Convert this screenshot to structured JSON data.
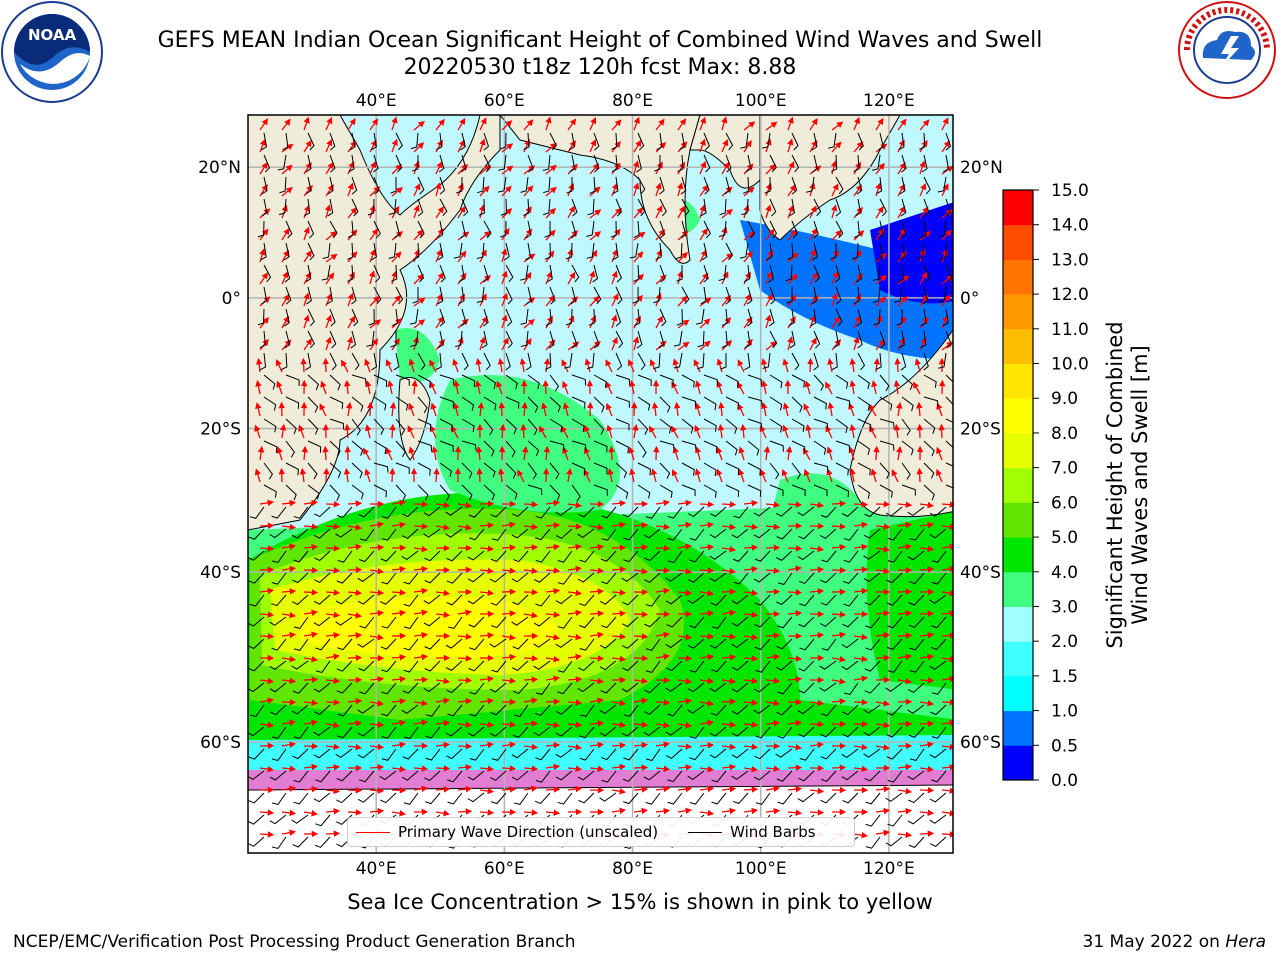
{
  "title": {
    "line1": "GEFS MEAN Indian Ocean Significant Height of Combined Wind Waves and Swell",
    "line2": "20220530 t18z 120h fcst   Max: 8.88"
  },
  "logos": {
    "left": {
      "text": "NOAA",
      "ring": "NATIONAL OCEANIC AND ATMOSPHERIC ADMINISTRATION • U.S. DEPARTMENT OF COMMERCE"
    },
    "right": {
      "ring": "NATIONAL WEATHER SERVICE"
    }
  },
  "map": {
    "lon_ticks": [
      "40°E",
      "60°E",
      "80°E",
      "100°E",
      "120°E"
    ],
    "lon_values": [
      40,
      60,
      80,
      100,
      120
    ],
    "lat_ticks": [
      "20°N",
      "0°",
      "20°S",
      "40°S",
      "60°S"
    ],
    "lat_values": [
      20,
      0,
      -20,
      -42,
      -68
    ],
    "lon_range": [
      20,
      130
    ],
    "lat_range": [
      28,
      -85
    ]
  },
  "legend": {
    "wave_label": "Primary Wave Direction (unscaled)",
    "barb_label": "Wind Barbs"
  },
  "colorbar": {
    "label_line1": "Significant Height of Combined",
    "label_line2": "Wind Waves and Swell [m]",
    "ticks": [
      "0.0",
      "0.5",
      "1.0",
      "1.5",
      "2.0",
      "3.0",
      "4.0",
      "5.0",
      "6.0",
      "7.0",
      "8.0",
      "9.0",
      "10.0",
      "11.0",
      "12.0",
      "13.0",
      "14.0",
      "15.0"
    ],
    "colors": [
      "#0000ff",
      "#0073ff",
      "#00ffff",
      "#40ffff",
      "#a0ffff",
      "#40ff80",
      "#00e600",
      "#60e600",
      "#a0ff00",
      "#e6ff00",
      "#ffff00",
      "#ffe600",
      "#ffbf00",
      "#ff9900",
      "#ff7300",
      "#ff4d00",
      "#ff0000"
    ]
  },
  "colors": {
    "land": "#efecda",
    "grid": "#b3b3b3"
  },
  "ice_note": "Sea Ice Concentration > 15% is shown in pink to yellow",
  "footer": {
    "left": "NCEP/EMC/Verification Post Processing Product Generation Branch",
    "right_date": "31 May 2022 on ",
    "right_host": "Hera"
  }
}
